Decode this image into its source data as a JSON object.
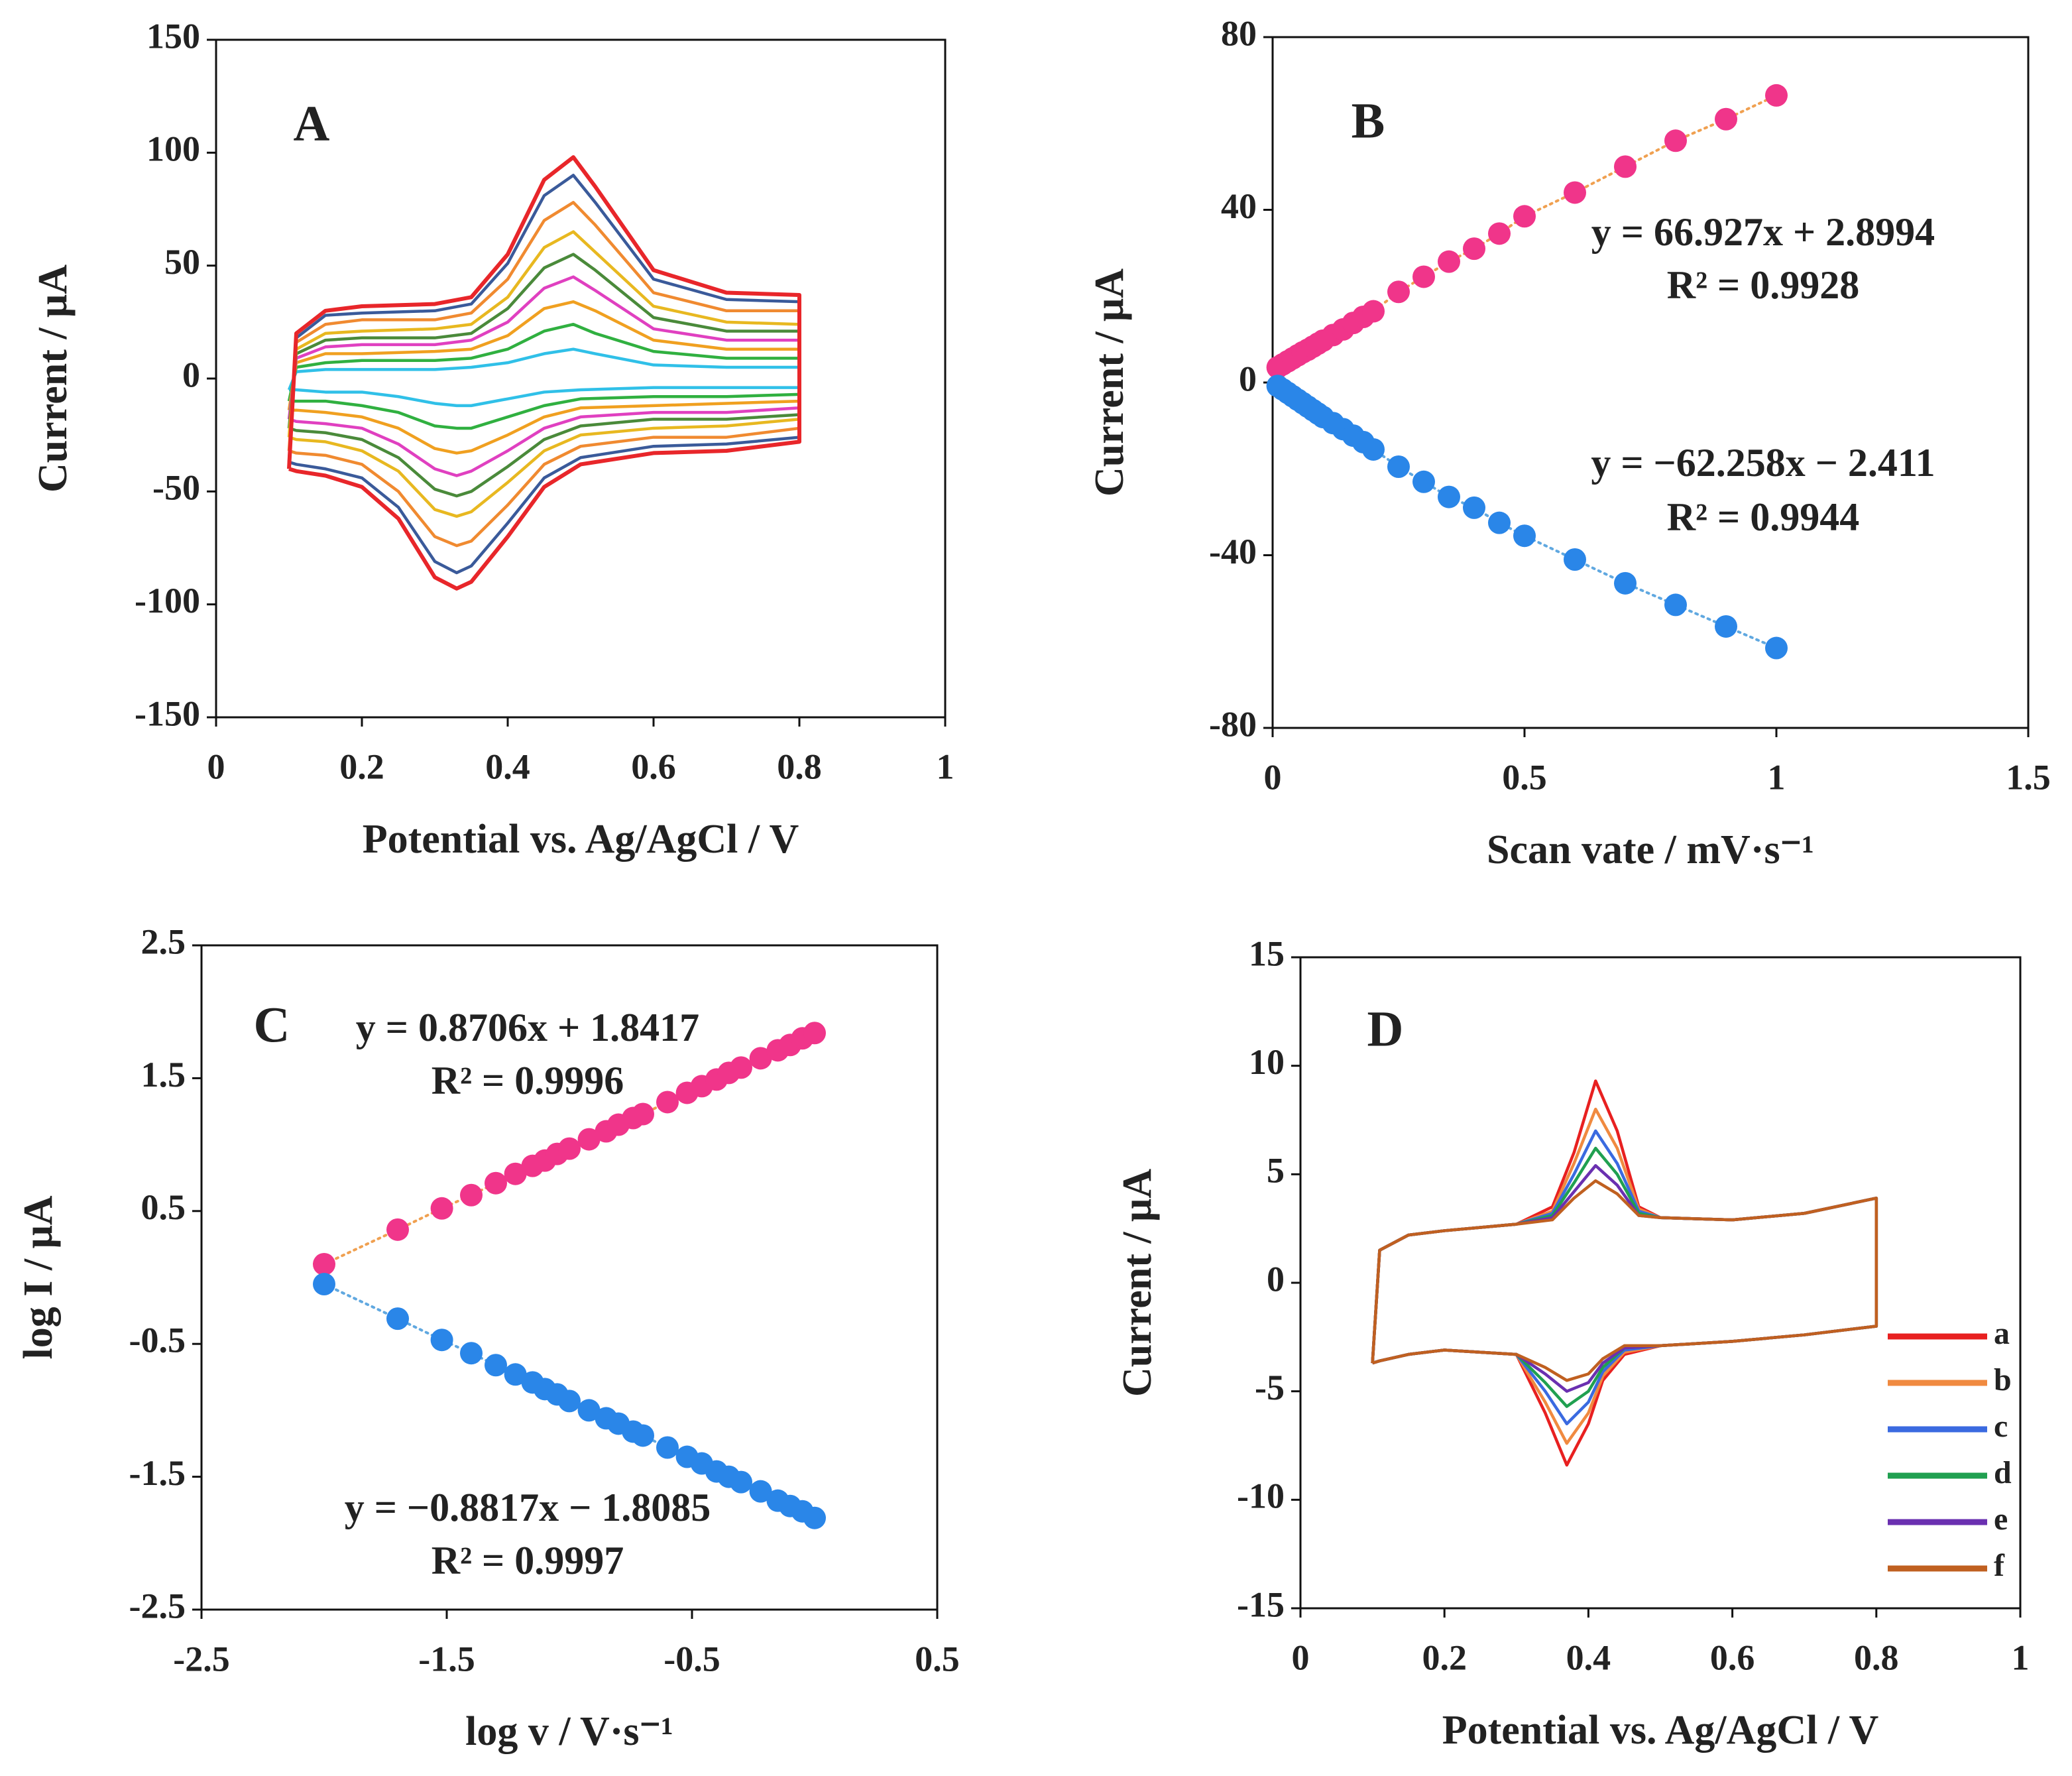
{
  "chart_data": [
    {
      "type": "line",
      "label": "A",
      "xlabel": "Potential vs. Ag/AgCl / V",
      "ylabel": "Current / μA",
      "xlim": [
        0,
        1
      ],
      "xticks": [
        0,
        0.2,
        0.4,
        0.6,
        0.8,
        1
      ],
      "ylim": [
        -150,
        150
      ],
      "yticks": [
        -150,
        -100,
        -50,
        0,
        50,
        100,
        150
      ],
      "x": [
        0.1,
        0.11,
        0.15,
        0.2,
        0.3,
        0.35,
        0.4,
        0.45,
        0.49,
        0.52,
        0.6,
        0.7,
        0.8,
        0.8,
        0.7,
        0.6,
        0.5,
        0.45,
        0.4,
        0.35,
        0.33,
        0.3,
        0.25,
        0.2,
        0.15,
        0.11,
        0.1
      ],
      "series": [
        {
          "color": "#30c0e8",
          "values": [
            -5,
            3,
            4,
            4,
            4,
            5,
            7,
            11,
            13,
            11,
            6,
            5,
            5,
            -4,
            -4,
            -4,
            -5,
            -6,
            -9,
            -12,
            -12,
            -11,
            -8,
            -6,
            -6,
            -5,
            -5
          ]
        },
        {
          "color": "#30b040",
          "values": [
            -10,
            5,
            7,
            8,
            8,
            9,
            13,
            21,
            24,
            20,
            12,
            9,
            9,
            -7,
            -8,
            -8,
            -9,
            -12,
            -17,
            -22,
            -22,
            -21,
            -15,
            -12,
            -10,
            -10,
            -10
          ]
        },
        {
          "color": "#f0a020",
          "values": [
            -14,
            7,
            11,
            11,
            12,
            13,
            19,
            31,
            34,
            30,
            17,
            13,
            13,
            -10,
            -11,
            -12,
            -13,
            -17,
            -25,
            -32,
            -33,
            -31,
            -22,
            -17,
            -15,
            -14,
            -14
          ]
        },
        {
          "color": "#e040c0",
          "values": [
            -18,
            9,
            14,
            15,
            15,
            17,
            25,
            40,
            45,
            39,
            22,
            17,
            17,
            -13,
            -15,
            -15,
            -17,
            -22,
            -32,
            -41,
            -43,
            -40,
            -29,
            -22,
            -20,
            -19,
            -18
          ]
        },
        {
          "color": "#4a8a3a",
          "values": [
            -22,
            11,
            17,
            18,
            18,
            20,
            31,
            49,
            55,
            48,
            27,
            21,
            21,
            -16,
            -18,
            -18,
            -21,
            -27,
            -39,
            -50,
            -52,
            -49,
            -35,
            -27,
            -24,
            -23,
            -22
          ]
        },
        {
          "color": "#e8b820",
          "values": [
            -26,
            13,
            20,
            21,
            22,
            24,
            36,
            58,
            65,
            56,
            32,
            25,
            24,
            -18,
            -21,
            -22,
            -25,
            -32,
            -46,
            -59,
            -61,
            -58,
            -41,
            -32,
            -28,
            -27,
            -26
          ]
        },
        {
          "color": "#f08a30",
          "values": [
            -32,
            16,
            24,
            26,
            26,
            29,
            44,
            70,
            78,
            68,
            38,
            30,
            30,
            -22,
            -26,
            -26,
            -30,
            -38,
            -56,
            -72,
            -74,
            -70,
            -50,
            -38,
            -34,
            -33,
            -32
          ]
        },
        {
          "color": "#3a5a9a",
          "values": [
            -37,
            18,
            28,
            29,
            30,
            33,
            51,
            81,
            90,
            78,
            44,
            35,
            34,
            -26,
            -29,
            -30,
            -35,
            -44,
            -64,
            -83,
            -86,
            -81,
            -57,
            -44,
            -40,
            -38,
            -37
          ]
        },
        {
          "color": "#e8262a",
          "values": [
            -40,
            20,
            30,
            32,
            33,
            36,
            55,
            88,
            98,
            85,
            48,
            38,
            37,
            -28,
            -32,
            -33,
            -38,
            -48,
            -70,
            -90,
            -93,
            -88,
            -62,
            -48,
            -43,
            -41,
            -40
          ]
        }
      ]
    },
    {
      "type": "scatter",
      "label": "B",
      "xlabel": "Scan vate / mV·s⁻¹",
      "ylabel": "Current / μA",
      "xlim": [
        0,
        1.5
      ],
      "xticks": [
        0,
        0.5,
        1,
        1.5
      ],
      "ylim": [
        -80,
        80
      ],
      "yticks": [
        -80,
        -40,
        0,
        40,
        80
      ],
      "annotations": [
        "y = 66.927x + 2.8994",
        "R² = 0.9928",
        "y = −62.258x − 2.411",
        "R² = 0.9944"
      ],
      "x": [
        0.01,
        0.02,
        0.03,
        0.04,
        0.05,
        0.06,
        0.07,
        0.08,
        0.09,
        0.1,
        0.12,
        0.14,
        0.16,
        0.18,
        0.2,
        0.25,
        0.3,
        0.35,
        0.4,
        0.45,
        0.5,
        0.6,
        0.7,
        0.8,
        0.9,
        1
      ],
      "series": [
        {
          "color": "#f0358a",
          "trend_color": "#f0a050",
          "values": [
            3.5,
            4.2,
            4.9,
            5.6,
            6.3,
            7,
            7.6,
            8.3,
            9,
            9.7,
            11,
            12.3,
            13.8,
            15.2,
            16.5,
            21,
            24.5,
            28,
            31,
            34.5,
            38.5,
            44,
            50,
            56,
            61,
            66.5
          ]
        },
        {
          "color": "#2a86e8",
          "trend_color": "#60a8e0",
          "values": [
            -0.8,
            -1.6,
            -2.4,
            -3.2,
            -4,
            -4.8,
            -5.6,
            -6.4,
            -7.2,
            -8,
            -9.4,
            -10.8,
            -12.3,
            -13.8,
            -15.5,
            -19.5,
            -23,
            -26.5,
            -29,
            -32.5,
            -35.5,
            -41,
            -46.5,
            -51.5,
            -56.5,
            -61.5
          ]
        }
      ]
    },
    {
      "type": "scatter",
      "label": "C",
      "xlabel": "log v / V·s⁻¹",
      "ylabel": "log I / μA",
      "xlim": [
        -2.5,
        0.5
      ],
      "xticks": [
        -2.5,
        -1.5,
        -0.5,
        0.5
      ],
      "ylim": [
        -2.5,
        2.5
      ],
      "yticks": [
        -2.5,
        -1.5,
        -0.5,
        0.5,
        1.5,
        2.5
      ],
      "annotations": [
        "y = 0.8706x + 1.8417",
        "R² = 0.9996",
        "y = −0.8817x − 1.8085",
        "R² = 0.9997"
      ],
      "x": [
        -2,
        -1.7,
        -1.52,
        -1.4,
        -1.3,
        -1.22,
        -1.15,
        -1.1,
        -1.05,
        -1,
        -0.92,
        -0.85,
        -0.8,
        -0.74,
        -0.7,
        -0.6,
        -0.52,
        -0.46,
        -0.4,
        -0.35,
        -0.3,
        -0.22,
        -0.15,
        -0.1,
        -0.05,
        0
      ],
      "series": [
        {
          "color": "#f0358a",
          "trend_color": "#f0a050",
          "values": [
            0.1,
            0.36,
            0.52,
            0.62,
            0.71,
            0.78,
            0.84,
            0.88,
            0.93,
            0.97,
            1.04,
            1.1,
            1.15,
            1.2,
            1.23,
            1.32,
            1.39,
            1.44,
            1.49,
            1.54,
            1.58,
            1.65,
            1.71,
            1.75,
            1.8,
            1.84
          ]
        },
        {
          "color": "#2a86e8",
          "trend_color": "#60a8e0",
          "values": [
            -0.05,
            -0.31,
            -0.47,
            -0.57,
            -0.66,
            -0.73,
            -0.79,
            -0.84,
            -0.88,
            -0.93,
            -1,
            -1.06,
            -1.1,
            -1.16,
            -1.19,
            -1.28,
            -1.35,
            -1.4,
            -1.46,
            -1.5,
            -1.54,
            -1.61,
            -1.68,
            -1.72,
            -1.76,
            -1.81
          ]
        }
      ]
    },
    {
      "type": "line",
      "label": "D",
      "xlabel": "Potential vs. Ag/AgCl / V",
      "ylabel": "Current / μA",
      "legend": "lower-right",
      "xlim": [
        0,
        1
      ],
      "xticks": [
        0,
        0.2,
        0.4,
        0.6,
        0.8,
        1
      ],
      "ylim": [
        -15,
        15
      ],
      "yticks": [
        -15,
        -10,
        -5,
        0,
        5,
        10,
        15
      ],
      "x": [
        0.1,
        0.11,
        0.15,
        0.2,
        0.3,
        0.35,
        0.38,
        0.41,
        0.44,
        0.47,
        0.5,
        0.6,
        0.7,
        0.8,
        0.8,
        0.7,
        0.6,
        0.5,
        0.45,
        0.42,
        0.4,
        0.37,
        0.34,
        0.3,
        0.2,
        0.15,
        0.11,
        0.1
      ],
      "series": [
        {
          "name": "a",
          "color": "#e82020",
          "values": [
            -3.7,
            1.5,
            2.2,
            2.4,
            2.7,
            3.5,
            6,
            9.3,
            7,
            3.5,
            3,
            2.9,
            3.2,
            3.9,
            -2,
            -2.4,
            -2.7,
            -2.9,
            -3.3,
            -4.5,
            -6.5,
            -8.4,
            -6,
            -3.3,
            -3.1,
            -3.3,
            -3.6,
            -3.7
          ]
        },
        {
          "name": "b",
          "color": "#f08a40",
          "values": [
            -3.7,
            1.5,
            2.2,
            2.4,
            2.7,
            3.3,
            5.5,
            8,
            6.2,
            3.4,
            3,
            2.9,
            3.2,
            3.9,
            -2,
            -2.4,
            -2.7,
            -2.9,
            -3.2,
            -4.3,
            -6,
            -7.4,
            -5.5,
            -3.3,
            -3.1,
            -3.3,
            -3.6,
            -3.7
          ]
        },
        {
          "name": "c",
          "color": "#3a6ae0",
          "values": [
            -3.7,
            1.5,
            2.2,
            2.4,
            2.7,
            3.2,
            5,
            7,
            5.5,
            3.3,
            3,
            2.9,
            3.2,
            3.9,
            -2,
            -2.4,
            -2.7,
            -2.9,
            -3.1,
            -4.1,
            -5.5,
            -6.5,
            -5,
            -3.3,
            -3.1,
            -3.3,
            -3.6,
            -3.7
          ]
        },
        {
          "name": "d",
          "color": "#20a050",
          "values": [
            -3.7,
            1.5,
            2.2,
            2.4,
            2.7,
            3.1,
            4.6,
            6.2,
            5,
            3.2,
            3,
            2.9,
            3.2,
            3.9,
            -2,
            -2.4,
            -2.7,
            -2.9,
            -3,
            -3.9,
            -5,
            -5.7,
            -4.6,
            -3.3,
            -3.1,
            -3.3,
            -3.6,
            -3.7
          ]
        },
        {
          "name": "e",
          "color": "#6a30b0",
          "values": [
            -3.7,
            1.5,
            2.2,
            2.4,
            2.7,
            3,
            4.2,
            5.4,
            4.5,
            3.1,
            3,
            2.9,
            3.2,
            3.9,
            -2,
            -2.4,
            -2.7,
            -2.9,
            -3,
            -3.7,
            -4.6,
            -5,
            -4.2,
            -3.3,
            -3.1,
            -3.3,
            -3.6,
            -3.7
          ]
        },
        {
          "name": "f",
          "color": "#c06020",
          "values": [
            -3.7,
            1.5,
            2.2,
            2.4,
            2.7,
            2.9,
            3.9,
            4.7,
            4.1,
            3.1,
            3,
            2.9,
            3.2,
            3.9,
            -2,
            -2.4,
            -2.7,
            -2.9,
            -2.9,
            -3.5,
            -4.2,
            -4.5,
            -3.9,
            -3.3,
            -3.1,
            -3.3,
            -3.6,
            -3.7
          ]
        }
      ]
    }
  ]
}
